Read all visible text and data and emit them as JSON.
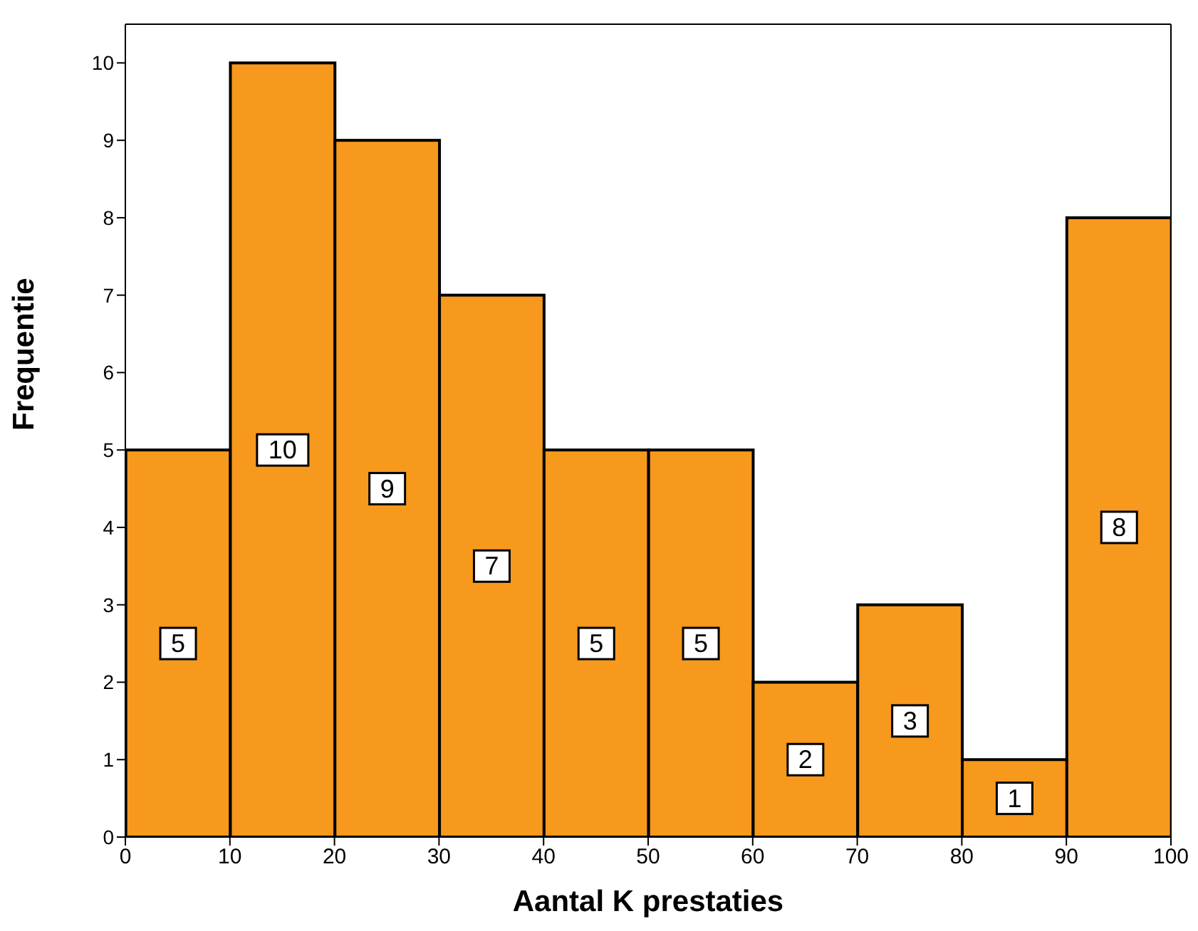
{
  "chart_data": {
    "type": "histogram",
    "xlabel": "Aantal K prestaties",
    "ylabel": "Frequentie",
    "bins": [
      0,
      10,
      20,
      30,
      40,
      50,
      60,
      70,
      80,
      90,
      100
    ],
    "values": [
      5,
      10,
      9,
      7,
      5,
      5,
      2,
      3,
      1,
      8
    ],
    "color": "#f7991c",
    "data_labels": true,
    "grid": false,
    "xlim": [
      0,
      100
    ],
    "xticks": [
      0,
      10,
      20,
      30,
      40,
      50,
      60,
      70,
      80,
      90,
      100
    ],
    "ylim": [
      0,
      10.5
    ],
    "yticks": [
      0,
      1,
      2,
      3,
      4,
      5,
      6,
      7,
      8,
      9,
      10
    ]
  }
}
